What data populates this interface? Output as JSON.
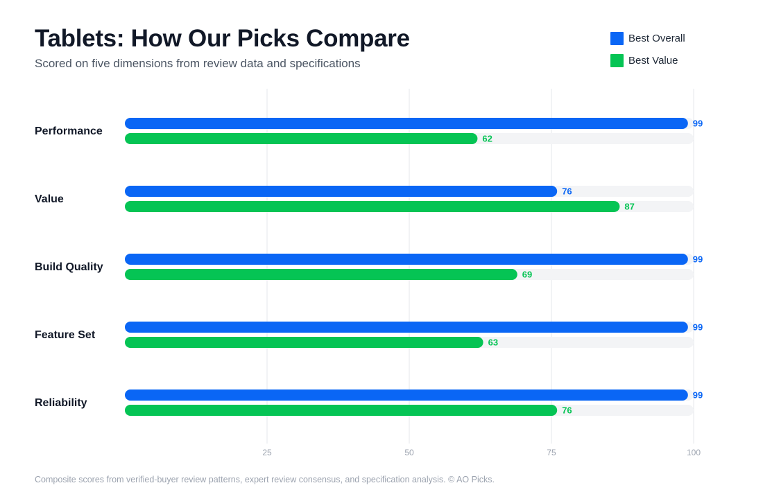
{
  "header": {
    "title": "Tablets: How Our Picks Compare",
    "subtitle": "Scored on five dimensions from review data and specifications"
  },
  "legend": {
    "items": [
      {
        "label": "Best Overall",
        "color": "#0a66f5"
      },
      {
        "label": "Best Value",
        "color": "#05c454"
      }
    ]
  },
  "footnote": "Composite scores from verified-buyer review patterns, expert review consensus, and specification analysis. © AO Picks.",
  "chart_data": {
    "type": "bar",
    "orientation": "horizontal",
    "title": "Tablets: How Our Picks Compare",
    "subtitle": "Scored on five dimensions from review data and specifications",
    "categories": [
      "Performance",
      "Value",
      "Build Quality",
      "Feature Set",
      "Reliability"
    ],
    "series": [
      {
        "name": "Best Overall",
        "color": "#0a66f5",
        "values": [
          99,
          76,
          99,
          99,
          99
        ]
      },
      {
        "name": "Best Value",
        "color": "#05c454",
        "values": [
          62,
          87,
          69,
          63,
          76
        ]
      }
    ],
    "xlim": [
      0,
      100
    ],
    "xticks": [
      25,
      50,
      75,
      100
    ],
    "grid": true,
    "legend_position": "top-right",
    "data_labels": true
  }
}
